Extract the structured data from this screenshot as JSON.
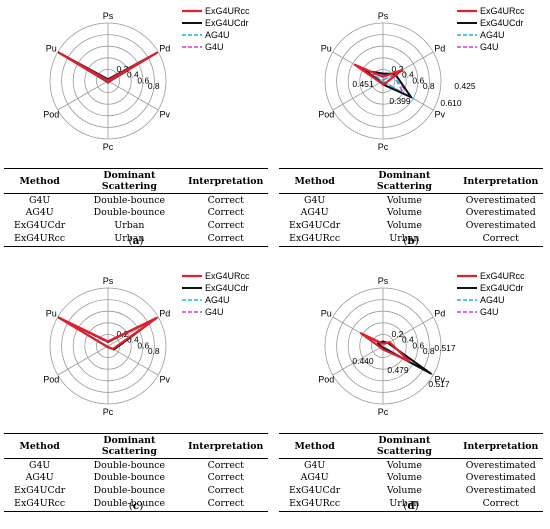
{
  "colors": {
    "ExG4URcc": "#e0202f",
    "ExG4UCdr": "#111111",
    "AG4U": "#18b7d6",
    "G4U": "#d63ad6",
    "grid": "#9a9a9a"
  },
  "chart_data": [
    {
      "panel": "a",
      "caption": "a",
      "type": "radar",
      "axes": [
        "Ps",
        "Pd",
        "Pv",
        "Pc",
        "Pod",
        "Pu"
      ],
      "rlim": [
        0,
        1
      ],
      "ring_ticks": [
        "0.2",
        "0.4",
        "0.6",
        "0.8"
      ],
      "legend": [
        "ExG4URcc",
        "ExG4UCdr",
        "AG4U",
        "G4U"
      ],
      "series": [
        {
          "name": "ExG4URcc",
          "values": [
            0.01,
            0.96,
            0.01,
            0.02,
            0.01,
            0.97
          ]
        },
        {
          "name": "ExG4UCdr",
          "values": [
            0.03,
            0.97,
            0.02,
            0.03,
            0.02,
            0.98
          ]
        },
        {
          "name": "AG4U",
          "values": [
            0.01,
            0.98,
            0.01,
            0.02,
            0.01,
            0.97
          ]
        },
        {
          "name": "G4U",
          "values": [
            0.02,
            0.97,
            0.01,
            0.02,
            0.01,
            0.98
          ]
        }
      ],
      "value_labels": [],
      "table": {
        "headers": [
          "Method",
          "Dominant Scattering",
          "Interpretation"
        ],
        "rows": [
          [
            "G4U",
            "Double-bounce",
            "Correct"
          ],
          [
            "AG4U",
            "Double-bounce",
            "Correct"
          ],
          [
            "ExG4UCdr",
            "Urban",
            "Correct"
          ],
          [
            "ExG4URcc",
            "Urban",
            "Correct"
          ]
        ]
      }
    },
    {
      "panel": "b",
      "caption": "b",
      "type": "radar",
      "axes": [
        "Ps",
        "Pd",
        "Pv",
        "Pc",
        "Pod",
        "Pu"
      ],
      "rlim": [
        0,
        1
      ],
      "ring_ticks": [
        "0.2",
        "0.4",
        "0.6",
        "0.8"
      ],
      "legend": [
        "ExG4URcc",
        "ExG4UCdr",
        "AG4U",
        "G4U"
      ],
      "series": [
        {
          "name": "ExG4URcc",
          "values": [
            0.07,
            0.38,
            0.06,
            0.06,
            0.05,
            0.56
          ]
        },
        {
          "name": "ExG4UCdr",
          "values": [
            0.13,
            0.24,
            0.56,
            0.06,
            0.04,
            0.35
          ]
        },
        {
          "name": "AG4U",
          "values": [
            0.02,
            0.18,
            0.61,
            0.02,
            0.02,
            0.18
          ]
        },
        {
          "name": "G4U",
          "values": [
            0.1,
            0.21,
            0.4,
            0.04,
            0.04,
            0.26
          ]
        }
      ],
      "value_labels": [
        "0.451",
        "0.425",
        "0.399",
        "0.610"
      ],
      "table": {
        "headers": [
          "Method",
          "Dominant Scattering",
          "Interpretation"
        ],
        "rows": [
          [
            "G4U",
            "Volume",
            "Overestimated"
          ],
          [
            "AG4U",
            "Volume",
            "Overestimated"
          ],
          [
            "ExG4UCdr",
            "Volume",
            "Overestimated"
          ],
          [
            "ExG4URcc",
            "Urban",
            "Correct"
          ]
        ]
      }
    },
    {
      "panel": "c",
      "caption": "c",
      "type": "radar",
      "axes": [
        "Ps",
        "Pd",
        "Pv",
        "Pc",
        "Pod",
        "Pu"
      ],
      "rlim": [
        0,
        1
      ],
      "ring_ticks": [
        "0.2",
        "0.4",
        "0.6",
        "0.8"
      ],
      "legend": [
        "ExG4URcc",
        "ExG4UCdr",
        "AG4U",
        "G4U"
      ],
      "series": [
        {
          "name": "ExG4URcc",
          "values": [
            0.08,
            0.97,
            0.1,
            0.02,
            0.02,
            0.97
          ]
        },
        {
          "name": "ExG4UCdr",
          "values": [
            0.07,
            0.96,
            0.12,
            0.02,
            0.02,
            0.98
          ]
        },
        {
          "name": "AG4U",
          "values": [
            0.06,
            0.97,
            0.12,
            0.02,
            0.02,
            0.97
          ]
        },
        {
          "name": "G4U",
          "values": [
            0.07,
            0.98,
            0.12,
            0.02,
            0.02,
            0.98
          ]
        }
      ],
      "value_labels": [],
      "table": {
        "headers": [
          "Method",
          "Dominant Scattering",
          "Interpretation"
        ],
        "rows": [
          [
            "G4U",
            "Double-bounce",
            "Correct"
          ],
          [
            "AG4U",
            "Double-bounce",
            "Correct"
          ],
          [
            "ExG4UCdr",
            "Double-bounce",
            "Correct"
          ],
          [
            "ExG4URcc",
            "Double-bounce",
            "Correct"
          ]
        ]
      }
    },
    {
      "panel": "d",
      "caption": "d",
      "type": "radar",
      "axes": [
        "Ps",
        "Pd",
        "Pv",
        "Pc",
        "Pod",
        "Pu"
      ],
      "rlim": [
        0,
        1
      ],
      "ring_ticks": [
        "0.2",
        "0.4",
        "0.6",
        "0.8"
      ],
      "legend": [
        "ExG4URcc",
        "ExG4UCdr",
        "AG4U",
        "G4U"
      ],
      "series": [
        {
          "name": "ExG4URcc",
          "values": [
            0.04,
            0.13,
            0.52,
            0.06,
            0.05,
            0.44
          ]
        },
        {
          "name": "ExG4UCdr",
          "values": [
            0.08,
            0.1,
            0.95,
            0.03,
            0.03,
            0.1
          ]
        },
        {
          "name": "AG4U",
          "values": [
            0.05,
            0.1,
            0.96,
            0.02,
            0.02,
            0.05
          ]
        },
        {
          "name": "G4U",
          "values": [
            0.06,
            0.11,
            0.96,
            0.02,
            0.02,
            0.08
          ]
        }
      ],
      "value_labels": [
        "0.440",
        "0.517",
        "0.479",
        "0.517"
      ],
      "table": {
        "headers": [
          "Method",
          "Dominant Scattering",
          "Interpretation"
        ],
        "rows": [
          [
            "G4U",
            "Volume",
            "Overestimated"
          ],
          [
            "AG4U",
            "Volume",
            "Overestimated"
          ],
          [
            "ExG4UCdr",
            "Volume",
            "Overestimated"
          ],
          [
            "ExG4URcc",
            "Urban",
            "Correct"
          ]
        ]
      }
    }
  ]
}
